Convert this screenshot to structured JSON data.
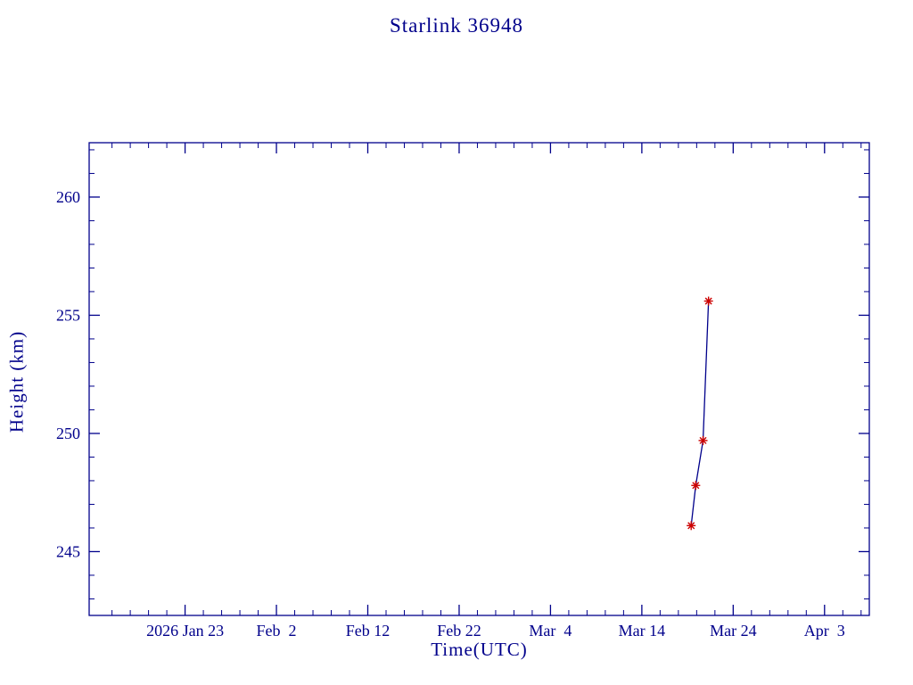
{
  "chart_data": {
    "type": "line",
    "title": "Starlink 36948",
    "xlabel": "Time(UTC)",
    "ylabel": "Height (km)",
    "x_unit": "days since first x tick (2026 Jan 23)",
    "x_ticks": [
      {
        "label": "2026 Jan 23",
        "day": 0
      },
      {
        "label": "Feb  2",
        "day": 10
      },
      {
        "label": "Feb 12",
        "day": 20
      },
      {
        "label": "Feb 22",
        "day": 30
      },
      {
        "label": "Mar  4",
        "day": 40
      },
      {
        "label": "Mar 14",
        "day": 50
      },
      {
        "label": "Mar 24",
        "day": 60
      },
      {
        "label": "Apr  3",
        "day": 70
      }
    ],
    "x_minor_step_days": 2,
    "xlim": [
      -10.5,
      74.9
    ],
    "y_ticks": [
      245,
      250,
      255,
      260
    ],
    "y_minor_step": 1,
    "ylim": [
      242.3,
      262.3
    ],
    "grid": false,
    "legend": "none",
    "series": [
      {
        "name": "orbit-height",
        "marker": "red-asterisk",
        "points": [
          {
            "day": 55.4,
            "height": 246.1
          },
          {
            "day": 55.9,
            "height": 247.8
          },
          {
            "day": 56.7,
            "height": 249.7
          },
          {
            "day": 57.3,
            "height": 255.6
          }
        ]
      }
    ],
    "colors": {
      "axes": "#00008b",
      "text": "#00008b",
      "line": "#00008b",
      "marker": "#cc0000",
      "background": "#ffffff"
    }
  }
}
